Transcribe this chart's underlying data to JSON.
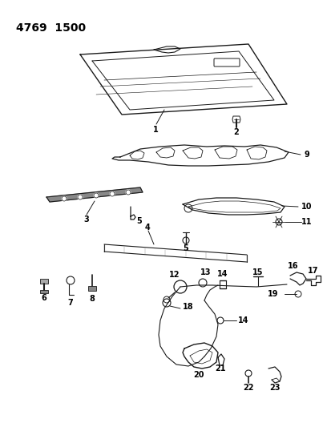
{
  "title": "4769  1500",
  "bg": "#ffffff",
  "lc": "#1a1a1a",
  "tc": "#000000",
  "fig_w": 4.08,
  "fig_h": 5.33,
  "dpi": 100
}
